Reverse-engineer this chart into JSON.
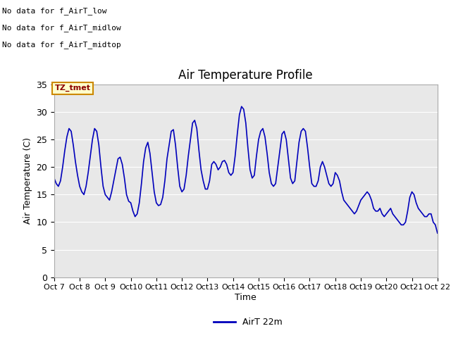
{
  "title": "Air Temperature Profile",
  "xlabel": "Time",
  "ylabel": "Air Temperature (C)",
  "legend_label": "AirT 22m",
  "no_data_texts": [
    "No data for f_AirT_low",
    "No data for f_AirT_midlow",
    "No data for f_AirT_midtop"
  ],
  "tz_tmet_label": "TZ_tmet",
  "xlim_days": [
    7,
    22
  ],
  "ylim": [
    0,
    35
  ],
  "yticks": [
    0,
    5,
    10,
    15,
    20,
    25,
    30,
    35
  ],
  "xtick_labels": [
    "Oct 7",
    "Oct 8",
    "Oct 9",
    "Oct 10",
    "Oct 11",
    "Oct 12",
    "Oct 13",
    "Oct 14",
    "Oct 15",
    "Oct 16",
    "Oct 17",
    "Oct 18",
    "Oct 19",
    "Oct 20",
    "Oct 21",
    "Oct 22"
  ],
  "line_color": "#0000bb",
  "fig_bg_color": "#ffffff",
  "plot_bg_color": "#e8e8e8",
  "grid_color": "#ffffff",
  "figsize": [
    6.4,
    4.8
  ],
  "dpi": 100,
  "x": [
    7.0,
    7.083,
    7.167,
    7.25,
    7.333,
    7.417,
    7.5,
    7.583,
    7.667,
    7.75,
    7.833,
    7.917,
    8.0,
    8.083,
    8.167,
    8.25,
    8.333,
    8.417,
    8.5,
    8.583,
    8.667,
    8.75,
    8.833,
    8.917,
    9.0,
    9.083,
    9.167,
    9.25,
    9.333,
    9.417,
    9.5,
    9.583,
    9.667,
    9.75,
    9.833,
    9.917,
    10.0,
    10.083,
    10.167,
    10.25,
    10.333,
    10.417,
    10.5,
    10.583,
    10.667,
    10.75,
    10.833,
    10.917,
    11.0,
    11.083,
    11.167,
    11.25,
    11.333,
    11.417,
    11.5,
    11.583,
    11.667,
    11.75,
    11.833,
    11.917,
    12.0,
    12.083,
    12.167,
    12.25,
    12.333,
    12.417,
    12.5,
    12.583,
    12.667,
    12.75,
    12.833,
    12.917,
    13.0,
    13.083,
    13.167,
    13.25,
    13.333,
    13.417,
    13.5,
    13.583,
    13.667,
    13.75,
    13.833,
    13.917,
    14.0,
    14.083,
    14.167,
    14.25,
    14.333,
    14.417,
    14.5,
    14.583,
    14.667,
    14.75,
    14.833,
    14.917,
    15.0,
    15.083,
    15.167,
    15.25,
    15.333,
    15.417,
    15.5,
    15.583,
    15.667,
    15.75,
    15.833,
    15.917,
    16.0,
    16.083,
    16.167,
    16.25,
    16.333,
    16.417,
    16.5,
    16.583,
    16.667,
    16.75,
    16.833,
    16.917,
    17.0,
    17.083,
    17.167,
    17.25,
    17.333,
    17.417,
    17.5,
    17.583,
    17.667,
    17.75,
    17.833,
    17.917,
    18.0,
    18.083,
    18.167,
    18.25,
    18.333,
    18.417,
    18.5,
    18.583,
    18.667,
    18.75,
    18.833,
    18.917,
    19.0,
    19.083,
    19.167,
    19.25,
    19.333,
    19.417,
    19.5,
    19.583,
    19.667,
    19.75,
    19.833,
    19.917,
    20.0,
    20.083,
    20.167,
    20.25,
    20.333,
    20.417,
    20.5,
    20.583,
    20.667,
    20.75,
    20.833,
    20.917,
    21.0,
    21.083,
    21.167,
    21.25,
    21.333,
    21.417,
    21.5,
    21.583,
    21.667,
    21.75,
    21.833,
    21.917,
    22.0
  ],
  "y": [
    18.0,
    17.0,
    16.5,
    17.5,
    20.0,
    23.0,
    25.5,
    27.0,
    26.5,
    24.0,
    21.0,
    18.5,
    16.5,
    15.5,
    15.0,
    16.5,
    19.0,
    22.0,
    25.0,
    27.0,
    26.5,
    24.0,
    20.0,
    16.5,
    15.0,
    14.5,
    14.0,
    15.5,
    17.5,
    19.5,
    21.5,
    21.8,
    20.5,
    18.0,
    15.0,
    13.8,
    13.5,
    12.0,
    11.0,
    11.5,
    13.5,
    17.0,
    21.0,
    23.5,
    24.5,
    22.5,
    19.0,
    15.5,
    13.5,
    13.0,
    13.2,
    14.5,
    17.5,
    21.5,
    24.0,
    26.5,
    26.8,
    24.0,
    20.0,
    16.5,
    15.5,
    16.0,
    18.5,
    22.0,
    25.0,
    28.0,
    28.5,
    27.0,
    23.0,
    19.5,
    17.5,
    16.0,
    16.0,
    17.5,
    20.5,
    21.0,
    20.5,
    19.5,
    20.0,
    21.0,
    21.2,
    20.5,
    19.0,
    18.5,
    19.0,
    22.0,
    26.0,
    29.5,
    31.0,
    30.5,
    28.0,
    23.5,
    19.5,
    18.0,
    18.5,
    22.0,
    25.0,
    26.5,
    27.0,
    25.5,
    22.5,
    19.0,
    17.0,
    16.5,
    17.0,
    20.0,
    23.0,
    26.0,
    26.5,
    25.0,
    21.5,
    18.0,
    17.0,
    17.5,
    21.0,
    24.5,
    26.5,
    27.0,
    26.5,
    23.5,
    20.0,
    17.0,
    16.5,
    16.5,
    17.5,
    20.0,
    21.0,
    20.0,
    18.5,
    17.0,
    16.5,
    17.0,
    19.0,
    18.5,
    17.5,
    15.5,
    14.0,
    13.5,
    13.0,
    12.5,
    12.0,
    11.5,
    12.0,
    13.0,
    14.0,
    14.5,
    15.0,
    15.5,
    15.0,
    14.0,
    12.5,
    12.0,
    12.0,
    12.5,
    11.5,
    11.0,
    11.5,
    12.0,
    12.5,
    11.5,
    11.0,
    10.5,
    10.0,
    9.5,
    9.5,
    10.0,
    12.0,
    14.5,
    15.5,
    15.0,
    13.5,
    12.5,
    12.0,
    11.5,
    11.0,
    11.0,
    11.5,
    11.5,
    10.0,
    9.5,
    8.0
  ]
}
